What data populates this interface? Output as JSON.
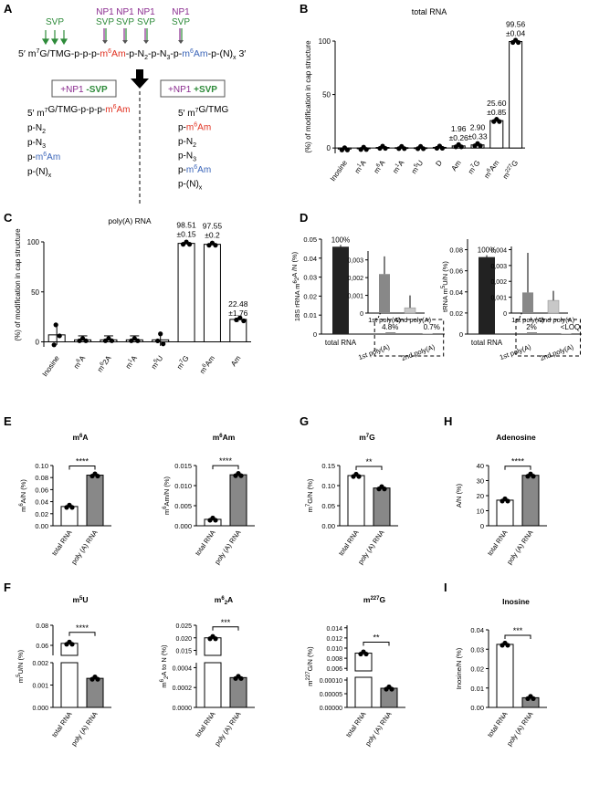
{
  "panels": {
    "A": "A",
    "B": "B",
    "C": "C",
    "D": "D",
    "E": "E",
    "F": "F",
    "G": "G",
    "H": "H",
    "I": "I"
  },
  "colors": {
    "svp": "#2e8b3a",
    "np1": "#8a2b8f",
    "m6am_red": "#e03020",
    "m6am_blue": "#3a64b8",
    "bar_dark": "#222222",
    "bar_mid": "#888888",
    "bar_light": "#c8c8c8",
    "bar_white": "#ffffff"
  },
  "panelA": {
    "svp_left": "SVP",
    "top_labels": [
      {
        "np1": "NP1",
        "svp": "SVP"
      },
      {
        "np1": "NP1",
        "svp": "SVP"
      },
      {
        "np1": "NP1",
        "svp": "SVP"
      },
      {
        "np1": "NP1",
        "svp": "SVP"
      }
    ],
    "seq": {
      "p1": "5′ m",
      "sup7": "7",
      "p2": "G/TMG-p-p-p-",
      "m6a": "m",
      "m6a_sup": "6",
      "m6a_base": "Am",
      "p3": "-p-N",
      "sub2": "2",
      "p4": "-p-N",
      "sub3": "3",
      "p5": "-p-",
      "m6b": "m",
      "m6b_sup": "6",
      "m6b_base": "Am",
      "p6": "-p-(N)",
      "subx": "x",
      "p7": " 3′"
    },
    "box_left": {
      "np1": "+NP1",
      "svp": "-SVP"
    },
    "box_right": {
      "np1": "+NP1",
      "svp": "+SVP"
    },
    "left_list": [
      {
        "a": "5′ m",
        "a_sup": "7",
        "b": "G/TMG-p-p-p-",
        "c": "m",
        "c_sup": "6",
        "d": "Am"
      },
      {
        "a": "p-N",
        "a_sub": "2"
      },
      {
        "a": "p-N",
        "a_sub": "3"
      },
      {
        "a": "p-",
        "c": "m",
        "c_sup": "6",
        "d": "Am"
      },
      {
        "a": "p-(N)",
        "a_sub": "x"
      }
    ],
    "right_list": [
      {
        "a": "5′ m",
        "a_sup": "7",
        "b": "G/TMG"
      },
      {
        "a": "p-",
        "c": "m",
        "c_sup": "6",
        "d": "Am"
      },
      {
        "a": "p-N",
        "a_sub": "2"
      },
      {
        "a": "p-N",
        "a_sub": "3"
      },
      {
        "a": "p-",
        "c": "m",
        "c_sup": "6",
        "d": "Am"
      },
      {
        "a": "p-(N)",
        "a_sub": "x"
      }
    ]
  },
  "chart_data": [
    {
      "id": "B",
      "type": "bar",
      "title": "total RNA",
      "ylabel": "(%) of modification in cap structure",
      "ylim": [
        -5,
        100
      ],
      "yticks": [
        0,
        50,
        100
      ],
      "categories": [
        "Inosine",
        "m1A",
        "m6,6A",
        "m1A",
        "m5U",
        "D",
        "Am",
        "m7G",
        "m6Am",
        "m227G"
      ],
      "cat_labels": [
        [
          "Inosine",
          ""
        ],
        [
          "m",
          "1",
          "A"
        ],
        [
          "m",
          "6",
          "A"
        ],
        [
          "m",
          "1",
          "A"
        ],
        [
          "m",
          "5",
          "U"
        ],
        [
          "D"
        ],
        [
          "Am"
        ],
        [
          "m",
          "7",
          "G"
        ],
        [
          "m",
          "6",
          "Am"
        ],
        [
          "m",
          "227",
          "G"
        ]
      ],
      "values": [
        -1,
        -0.5,
        0.5,
        0.3,
        0.2,
        0.6,
        1.96,
        2.9,
        25.6,
        99.56
      ],
      "annotations": {
        "6": [
          "1.96",
          "±0.26"
        ],
        "7": [
          "2.90",
          "±0.33"
        ],
        "8": [
          "25.60",
          "±0.85"
        ],
        "9": [
          "99.56",
          "±0.04"
        ]
      }
    },
    {
      "id": "C",
      "type": "bar",
      "title": "poly(A) RNA",
      "ylabel": "(%) of modification in cap structure",
      "ylim": [
        -5,
        100
      ],
      "yticks": [
        0,
        50,
        100
      ],
      "cat_labels": [
        [
          "Inosine"
        ],
        [
          "m",
          "6",
          "A"
        ],
        [
          "m",
          "6",
          "2A"
        ],
        [
          "m",
          "1",
          "A"
        ],
        [
          "m",
          "5",
          "U"
        ],
        [
          "m",
          "7",
          "G"
        ],
        [
          "m",
          "6",
          "Am"
        ],
        [
          "Am"
        ]
      ],
      "values": [
        7,
        2,
        2,
        2,
        2,
        98.51,
        97.55,
        22.48
      ],
      "annotations": {
        "5": [
          "98.51",
          "±0.15"
        ],
        "6": [
          "97.55",
          "±0.2"
        ],
        "7": [
          "22.48",
          "±1.76"
        ]
      }
    },
    {
      "id": "D1",
      "type": "bar",
      "ylabel": "18S rRNA m6,2A /N (%)",
      "ylim": [
        0,
        0.05
      ],
      "yticks": [
        "0",
        "0.01",
        "0.02",
        "0.03",
        "0.04",
        "0.05"
      ],
      "categories": [
        "total RNA",
        "1st poly(A)",
        "2nd poly(A)"
      ],
      "values": [
        0.046,
        0.0022,
        0.0003
      ],
      "pct": [
        "100%",
        "4.8%",
        "0.7%"
      ],
      "inset_yticks": [
        "0",
        "0,001",
        "0,002",
        "0,003"
      ],
      "inset_cats": [
        "1st poly(A)",
        "2nd poly(A)"
      ]
    },
    {
      "id": "D2",
      "type": "bar",
      "ylabel": "tRNA m5U/N (%)",
      "ylim": [
        0,
        0.09
      ],
      "yticks": [
        "0",
        "0.02",
        "0.04",
        "0.06",
        "0.08"
      ],
      "categories": [
        "total RNA",
        "1st poly(A)",
        "2nd poly(A)"
      ],
      "values": [
        0.073,
        0.0013,
        0.0008
      ],
      "pct": [
        "100%",
        "2%",
        "<LOQ"
      ],
      "inset_yticks": [
        "0",
        "0,001",
        "0,002",
        "0,003",
        "0,004"
      ],
      "inset_cats": [
        "1st poly(A)",
        "2nd poly(A)"
      ]
    },
    {
      "id": "E1",
      "type": "bar",
      "title": "m6A",
      "ylabel": "m6A/N (%)",
      "categories": [
        "total RNA",
        "poly (A) RNA"
      ],
      "values": [
        0.032,
        0.084
      ],
      "ylim": [
        0,
        0.1
      ],
      "yticks": [
        "0.00",
        "0.02",
        "0.04",
        "0.06",
        "0.08",
        "0.10"
      ],
      "sig": "****"
    },
    {
      "id": "E2",
      "type": "bar",
      "title": "m6Am",
      "ylabel": "m6Am/N (%)",
      "categories": [
        "total RNA",
        "poly (A) RNA"
      ],
      "values": [
        0.0016,
        0.0127
      ],
      "ylim": [
        0,
        0.015
      ],
      "yticks": [
        "0.000",
        "0.005",
        "0.010",
        "0.015"
      ],
      "sig": "****"
    },
    {
      "id": "G",
      "type": "bar",
      "title": "m7G",
      "ylabel": "m7G/N (%)",
      "categories": [
        "total RNA",
        "poly (A) RNA"
      ],
      "values": [
        0.125,
        0.094
      ],
      "ylim": [
        0,
        0.15
      ],
      "yticks": [
        "0.00",
        "0.05",
        "0.10",
        "0.15"
      ],
      "sig": "**"
    },
    {
      "id": "H",
      "type": "bar",
      "title": "Adenosine",
      "ylabel": "A/N (%)",
      "categories": [
        "total RNA",
        "poly (A) RNA"
      ],
      "values": [
        17,
        33.5
      ],
      "ylim": [
        0,
        40
      ],
      "yticks": [
        "0",
        "10",
        "20",
        "30",
        "40"
      ],
      "sig": "****"
    },
    {
      "id": "F1",
      "type": "bar",
      "title": "m5U",
      "ylabel": "m5U/N (%)",
      "categories": [
        "total RNA",
        "poly (A) RNA"
      ],
      "values": [
        0.062,
        0.0013
      ],
      "yticks_top": [
        "0.06",
        "0.08"
      ],
      "yticks_bot": [
        "0.000",
        "0.001",
        "0.002"
      ],
      "sig": "****"
    },
    {
      "id": "F2",
      "type": "bar",
      "title": "m62A",
      "ylabel": "m62A to N (%)",
      "categories": [
        "total RNA",
        "poly (A) RNA"
      ],
      "values": [
        0.02,
        0.0003
      ],
      "yticks_top": [
        "0.015",
        "0.020",
        "0.025"
      ],
      "yticks_bot": [
        "0.0000",
        "0.0002",
        "0.0004"
      ],
      "sig": "***"
    },
    {
      "id": "F3",
      "type": "bar",
      "title": "m227G",
      "ylabel": "m227G/N (%)",
      "categories": [
        "total RNA",
        "poly (A) RNA"
      ],
      "values": [
        0.009,
        7e-05
      ],
      "yticks_top": [
        "0.006",
        "0.008",
        "0.010",
        "0.012",
        "0.014"
      ],
      "yticks_bot": [
        "0.00000",
        "0.00005",
        "0.00010"
      ],
      "sig": "**"
    },
    {
      "id": "I",
      "type": "bar",
      "title": "Inosine",
      "ylabel": "Inosine/N (%)",
      "categories": [
        "total RNA",
        "poly (A) RNA"
      ],
      "values": [
        0.0325,
        0.005
      ],
      "ylim": [
        0,
        0.04
      ],
      "yticks": [
        "0.00",
        "0.01",
        "0.02",
        "0.03",
        "0.04"
      ],
      "sig": "***"
    }
  ]
}
